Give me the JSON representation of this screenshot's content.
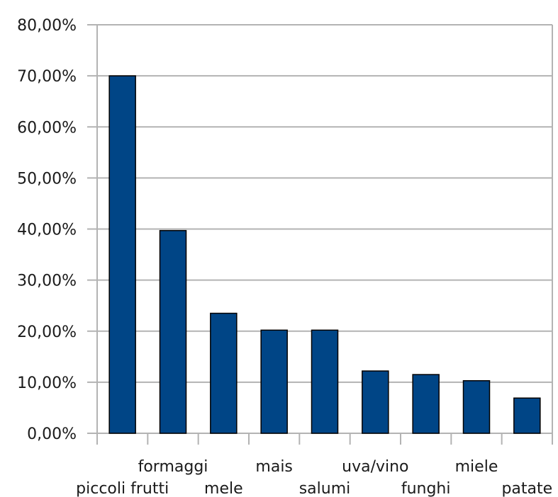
{
  "chart_data": {
    "type": "bar",
    "title": "",
    "xlabel": "",
    "ylabel": "",
    "categories": [
      "piccoli frutti",
      "formaggi",
      "mele",
      "mais",
      "salumi",
      "uva/vino",
      "funghi",
      "miele",
      "patate"
    ],
    "values": [
      70.0,
      39.7,
      23.5,
      20.2,
      20.2,
      12.2,
      11.5,
      10.3,
      6.9
    ],
    "ylim": [
      0,
      80
    ],
    "y_ticks": [
      "0,00%",
      "10,00%",
      "20,00%",
      "30,00%",
      "40,00%",
      "50,00%",
      "60,00%",
      "70,00%",
      "80,00%"
    ],
    "grid": true,
    "legend": "none",
    "colors": {
      "bar": "#004586",
      "bar_outline": "#000000",
      "grid": "#b3b3b3",
      "axis": "#b3b3b3"
    }
  }
}
